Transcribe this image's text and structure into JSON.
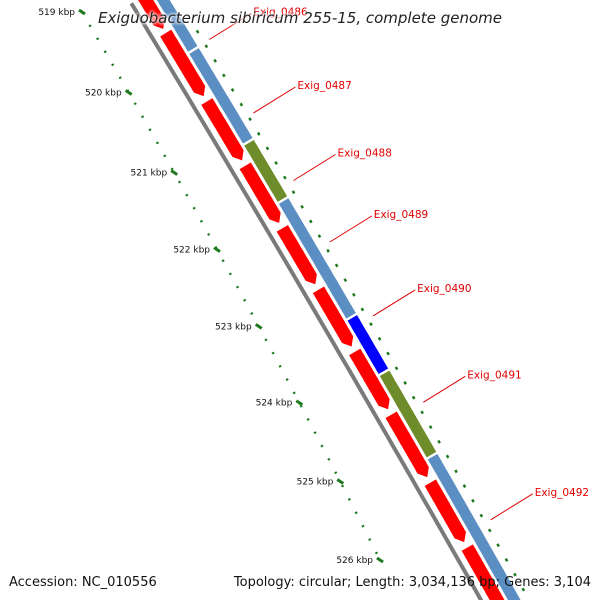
{
  "title": "Exiguobacterium sibiricum 255-15, complete genome",
  "footer": {
    "accession": "Accession: NC_010556",
    "summary": "Topology: circular; Length: 3,034,136 bp; Genes: 3,104"
  },
  "colors": {
    "cds": "#ff0000",
    "blast_default": "#5b8fc4",
    "blast_green": "#6e8c2a",
    "blast_blue": "#0000ff",
    "backbone": "#7a7a7a",
    "ticks": "#1f7a1f",
    "label": "#e00000"
  },
  "ruler": [
    {
      "label": "519 kbp",
      "kbp": 519
    },
    {
      "label": "520 kbp",
      "kbp": 520
    },
    {
      "label": "521 kbp",
      "kbp": 521
    },
    {
      "label": "522 kbp",
      "kbp": 522
    },
    {
      "label": "523 kbp",
      "kbp": 523
    },
    {
      "label": "524 kbp",
      "kbp": 524
    },
    {
      "label": "525 kbp",
      "kbp": 525
    },
    {
      "label": "526 kbp",
      "kbp": 526
    }
  ],
  "genes": [
    {
      "label": "Exig_0486"
    },
    {
      "label": "Exig_0487"
    },
    {
      "label": "Exig_0488"
    },
    {
      "label": "Exig_0489"
    },
    {
      "label": "Exig_0490"
    },
    {
      "label": "Exig_0491"
    },
    {
      "label": "Exig_0492"
    }
  ]
}
